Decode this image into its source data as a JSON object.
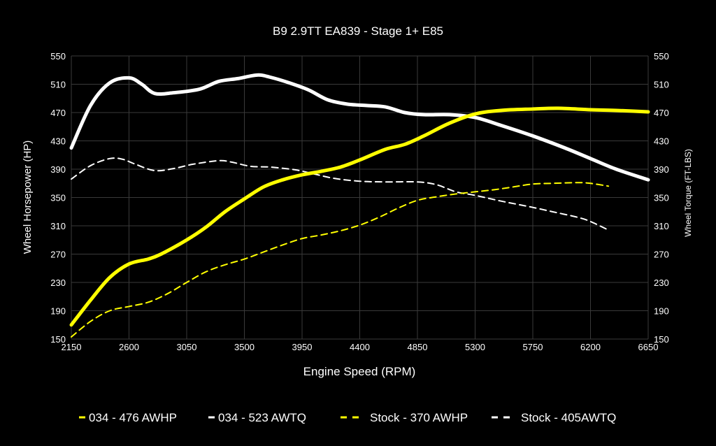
{
  "chart_data": {
    "type": "line",
    "title": "B9 2.9TT EA839 - Stage 1+ E85",
    "xlabel": "Engine Speed (RPM)",
    "ylabel": "Wheel Horsepower (HP)",
    "y2label": "Wheel Torque (FT-LBS)",
    "xlim": [
      2150,
      6650
    ],
    "ylim": [
      150,
      550
    ],
    "y2lim": [
      150,
      550
    ],
    "xticks": [
      2150,
      2600,
      3050,
      3500,
      3950,
      4400,
      4850,
      5300,
      5750,
      6200,
      6650
    ],
    "yticks": [
      150,
      190,
      230,
      270,
      310,
      350,
      390,
      430,
      470,
      510,
      550
    ],
    "grid": true,
    "legend": "bottom",
    "series": [
      {
        "name": "034 - 476 AWHP",
        "color": "#ffff00",
        "style": "solid",
        "axis": "left",
        "x": [
          2150,
          2300,
          2450,
          2600,
          2750,
          2850,
          3050,
          3200,
          3350,
          3500,
          3650,
          3800,
          3950,
          4100,
          4250,
          4400,
          4600,
          4750,
          4900,
          5100,
          5300,
          5500,
          5750,
          5950,
          6200,
          6400,
          6650
        ],
        "y": [
          170,
          205,
          237,
          256,
          263,
          270,
          290,
          308,
          330,
          348,
          365,
          375,
          382,
          387,
          393,
          403,
          418,
          425,
          437,
          455,
          468,
          473,
          475,
          476,
          474,
          473,
          471
        ]
      },
      {
        "name": "034 - 523 AWTQ",
        "color": "#ffffff",
        "style": "solid",
        "axis": "right",
        "x": [
          2150,
          2300,
          2450,
          2600,
          2700,
          2800,
          2950,
          3150,
          3300,
          3450,
          3600,
          3700,
          3850,
          4000,
          4150,
          4300,
          4450,
          4600,
          4750,
          4900,
          5100,
          5300,
          5500,
          5750,
          6000,
          6200,
          6400,
          6650
        ],
        "y": [
          420,
          480,
          512,
          519,
          510,
          497,
          498,
          503,
          514,
          518,
          523,
          520,
          512,
          502,
          488,
          482,
          480,
          478,
          470,
          467,
          467,
          463,
          452,
          437,
          420,
          405,
          390,
          375
        ]
      },
      {
        "name": "Stock - 370 AWHP",
        "color": "#ffff00",
        "style": "dashed",
        "axis": "left",
        "x": [
          2150,
          2300,
          2450,
          2600,
          2750,
          2900,
          3050,
          3200,
          3350,
          3500,
          3650,
          3800,
          3950,
          4100,
          4250,
          4400,
          4550,
          4700,
          4850,
          5000,
          5150,
          5300,
          5450,
          5600,
          5750,
          5900,
          6100,
          6200,
          6340
        ],
        "y": [
          153,
          175,
          190,
          196,
          202,
          214,
          230,
          245,
          255,
          263,
          273,
          283,
          292,
          297,
          303,
          311,
          322,
          335,
          346,
          351,
          355,
          358,
          361,
          365,
          369,
          370,
          371,
          370,
          366
        ]
      },
      {
        "name": "Stock - 405AWTQ",
        "color": "#ffffff",
        "style": "dashed",
        "axis": "right",
        "x": [
          2150,
          2300,
          2450,
          2550,
          2650,
          2800,
          2950,
          3100,
          3300,
          3400,
          3550,
          3700,
          3900,
          4050,
          4200,
          4400,
          4600,
          4850,
          5000,
          5150,
          5300,
          5500,
          5750,
          5900,
          6100,
          6200,
          6340
        ],
        "y": [
          376,
          395,
          405,
          404,
          397,
          388,
          391,
          397,
          402,
          400,
          394,
          393,
          389,
          383,
          377,
          373,
          372,
          372,
          368,
          358,
          353,
          345,
          336,
          330,
          322,
          316,
          304
        ]
      }
    ]
  }
}
